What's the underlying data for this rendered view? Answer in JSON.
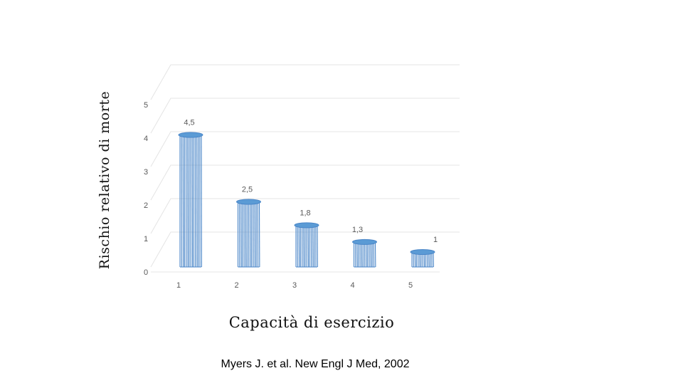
{
  "chart_data": {
    "type": "bar",
    "categories": [
      "1",
      "2",
      "3",
      "4",
      "5"
    ],
    "values": [
      4.5,
      2.5,
      1.8,
      1.3,
      1
    ],
    "data_labels": [
      "4,5",
      "2,5",
      "1,8",
      "1,3",
      "1"
    ],
    "y_ticks": [
      "0",
      "1",
      "2",
      "3",
      "4",
      "5"
    ],
    "ylim": [
      0,
      5
    ],
    "xlabel": "Capacità di esercizio",
    "ylabel": "Rischio relativo di morte",
    "grid": true,
    "colors": {
      "bar_fill": "#ffffff",
      "bar_line": "#4a86c8",
      "bar_top": "#5b9bd5",
      "grid": "#e4e4e4",
      "tick_text": "#595959"
    }
  },
  "citation": "Myers J. et al. New Engl J Med, 2002"
}
